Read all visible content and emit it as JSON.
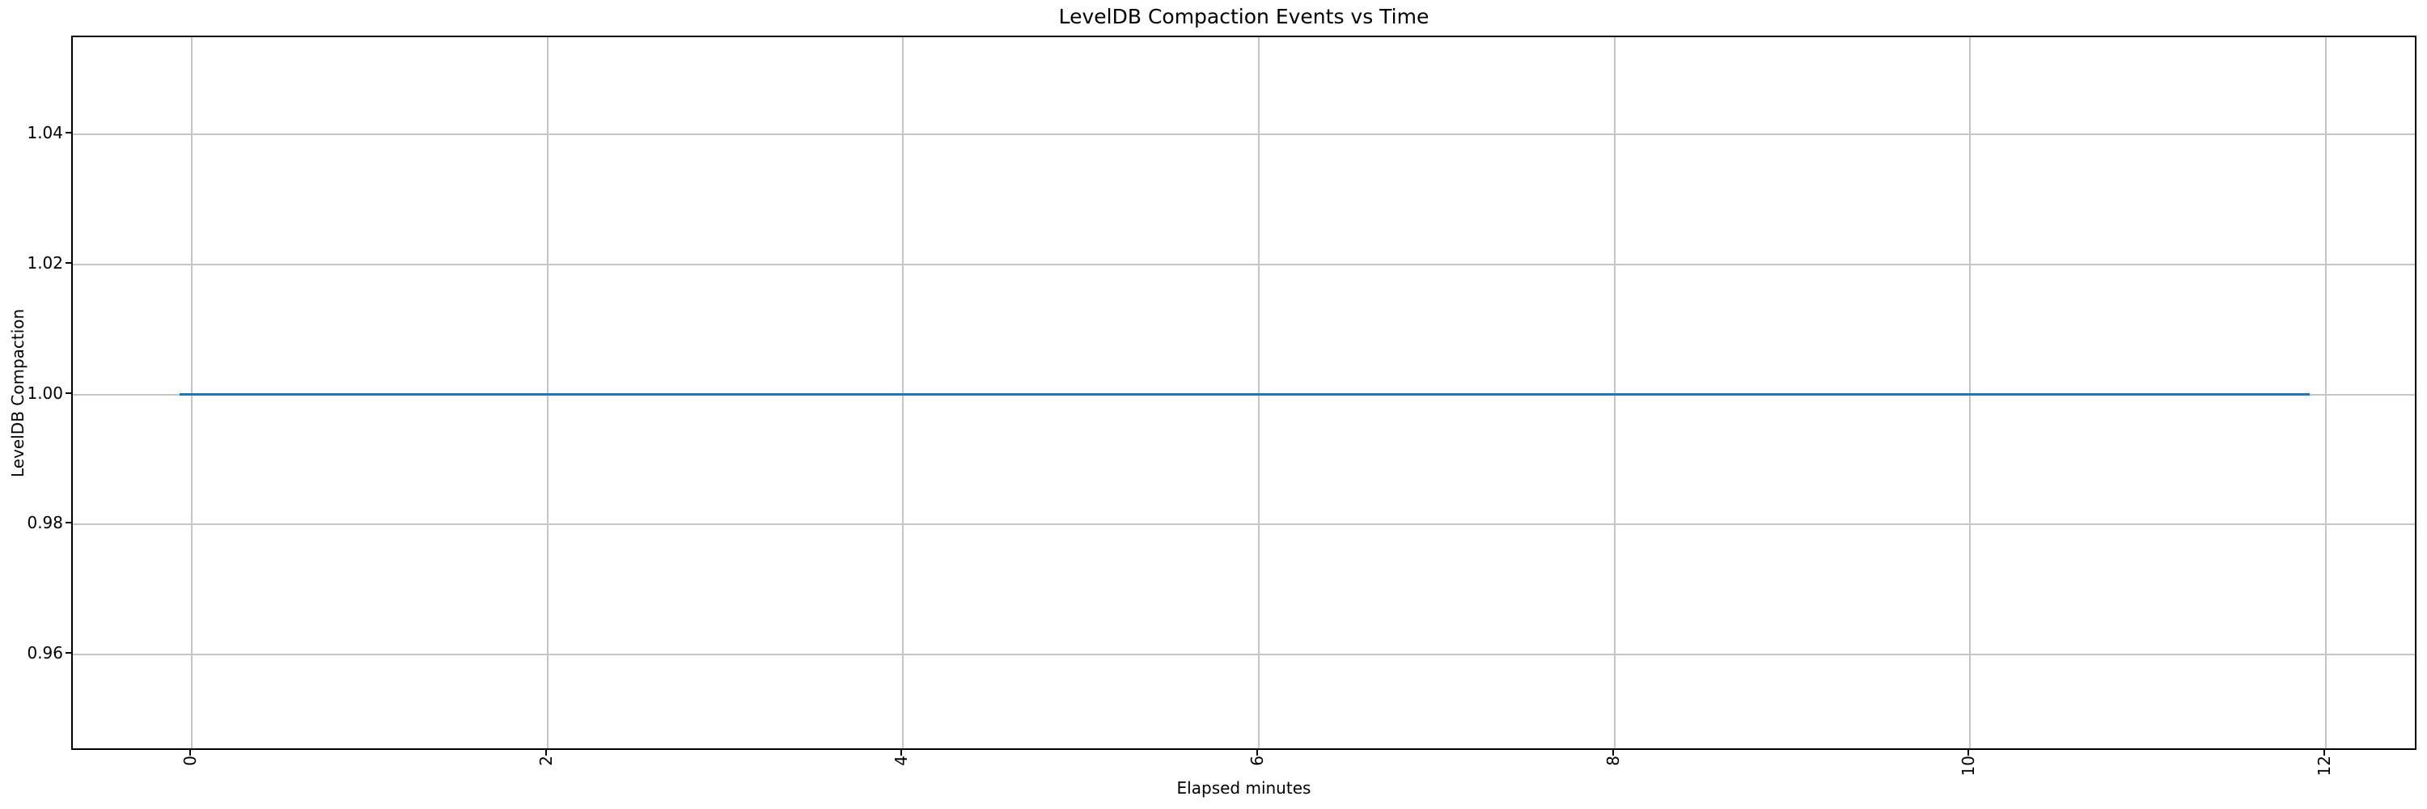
{
  "chart_data": {
    "type": "line",
    "title": "LevelDB Compaction Events vs Time",
    "xlabel": "Elapsed minutes",
    "ylabel": "LevelDB Compaction",
    "xlim": [
      -0.67,
      12.52
    ],
    "ylim": [
      0.945,
      1.055
    ],
    "xticks": [
      0,
      2,
      4,
      6,
      8,
      10,
      12
    ],
    "xtick_labels": [
      "0",
      "2",
      "4",
      "6",
      "8",
      "10",
      "12"
    ],
    "xtick_rotation": 90,
    "yticks": [
      0.96,
      0.98,
      1.0,
      1.02,
      1.04
    ],
    "ytick_labels": [
      "0.96",
      "0.98",
      "1.00",
      "1.02",
      "1.04"
    ],
    "grid": true,
    "legend": false,
    "series": [
      {
        "color": "#1f77b4",
        "x": [
          -0.07,
          11.91
        ],
        "y": [
          1.0,
          1.0
        ]
      }
    ]
  },
  "colors": {
    "line": "#1f77b4",
    "grid": "#c6c6c6",
    "spine": "#000000",
    "background": "#ffffff",
    "text": "#000000"
  }
}
